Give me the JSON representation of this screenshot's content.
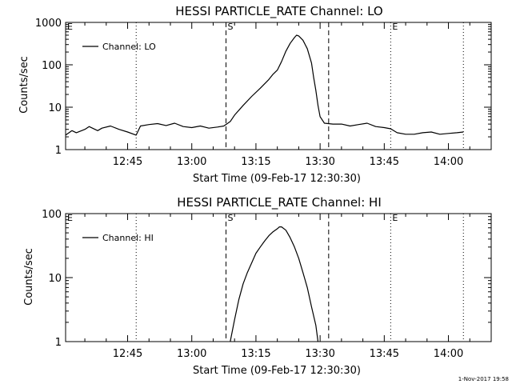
{
  "footer": {
    "timestamp": "1-Nov-2017 19:58"
  },
  "chart_data": [
    {
      "type": "line",
      "title": "HESSI PARTICLE_RATE Channel: LO",
      "xlabel": "Start Time (09-Feb-17 12:30:30)",
      "ylabel": "Counts/sec",
      "yscale": "log",
      "ylim": [
        1,
        1000
      ],
      "xlim": [
        "12:30:30",
        "14:10:00"
      ],
      "x_ticks": [
        "12:45",
        "13:00",
        "13:15",
        "13:30",
        "13:45",
        "14:00"
      ],
      "y_ticks": [
        "1",
        "10",
        "100",
        "1000"
      ],
      "legend": {
        "label": "Channel: LO",
        "position": "top-left"
      },
      "markers": [
        {
          "time": "12:30:30",
          "label": "E",
          "style": "dotted"
        },
        {
          "time": "12:47:00",
          "label": "",
          "style": "dotted"
        },
        {
          "time": "13:08:00",
          "label": "S",
          "style": "dashed"
        },
        {
          "time": "13:32:00",
          "label": "",
          "style": "dashed"
        },
        {
          "time": "13:46:30",
          "label": "E",
          "style": "dotted"
        },
        {
          "time": "14:03:30",
          "label": "",
          "style": "dotted"
        }
      ],
      "series": [
        {
          "name": "Channel: LO",
          "x": [
            "12:30:30",
            "12:32:00",
            "12:33:00",
            "12:35:00",
            "12:36:00",
            "12:38:00",
            "12:39:00",
            "12:41:00",
            "12:43:00",
            "12:45:00",
            "12:47:00",
            "12:48:00",
            "12:50:00",
            "12:52:00",
            "12:54:00",
            "12:56:00",
            "12:58:00",
            "13:00:00",
            "13:02:00",
            "13:04:00",
            "13:06:00",
            "13:07:30",
            "13:09:00",
            "13:10:00",
            "13:12:00",
            "13:14:00",
            "13:16:00",
            "13:18:00",
            "13:19:00",
            "13:20:00",
            "13:21:00",
            "13:22:00",
            "13:23:00",
            "13:24:00",
            "13:24:30",
            "13:25:00",
            "13:26:00",
            "13:27:00",
            "13:28:00",
            "13:28:30",
            "13:29:00",
            "13:29:30",
            "13:30:00",
            "13:31:00",
            "13:33:00",
            "13:35:00",
            "13:37:00",
            "13:39:00",
            "13:41:00",
            "13:43:00",
            "13:45:00",
            "13:46:30",
            "13:48:00",
            "13:50:00",
            "13:52:00",
            "13:54:00",
            "13:56:00",
            "13:58:00",
            "14:00:00",
            "14:02:00",
            "14:03:30"
          ],
          "y": [
            2.2,
            2.8,
            2.5,
            3.0,
            3.5,
            2.8,
            3.2,
            3.6,
            3.0,
            2.6,
            2.2,
            3.6,
            3.9,
            4.1,
            3.7,
            4.2,
            3.5,
            3.3,
            3.6,
            3.2,
            3.4,
            3.6,
            4.6,
            6.5,
            11,
            18,
            28,
            45,
            60,
            75,
            120,
            210,
            320,
            440,
            500,
            480,
            380,
            240,
            110,
            50,
            25,
            11,
            6.0,
            4.2,
            4.0,
            4.0,
            3.6,
            3.9,
            4.2,
            3.5,
            3.3,
            3.1,
            2.5,
            2.3,
            2.3,
            2.5,
            2.6,
            2.3,
            2.4,
            2.5,
            2.6
          ]
        }
      ]
    },
    {
      "type": "line",
      "title": "HESSI PARTICLE_RATE Channel: HI",
      "xlabel": "Start Time (09-Feb-17 12:30:30)",
      "ylabel": "Counts/sec",
      "yscale": "log",
      "ylim": [
        1,
        100
      ],
      "xlim": [
        "12:30:30",
        "14:10:00"
      ],
      "x_ticks": [
        "12:45",
        "13:00",
        "13:15",
        "13:30",
        "13:45",
        "14:00"
      ],
      "y_ticks": [
        "1",
        "10",
        "100"
      ],
      "legend": {
        "label": "Channel: HI",
        "position": "top-left"
      },
      "markers": [
        {
          "time": "12:30:30",
          "label": "E",
          "style": "dotted"
        },
        {
          "time": "12:47:00",
          "label": "",
          "style": "dotted"
        },
        {
          "time": "13:08:00",
          "label": "S",
          "style": "dashed"
        },
        {
          "time": "13:32:00",
          "label": "",
          "style": "dashed"
        },
        {
          "time": "13:46:30",
          "label": "E",
          "style": "dotted"
        },
        {
          "time": "14:03:30",
          "label": "",
          "style": "dotted"
        }
      ],
      "series": [
        {
          "name": "Channel: HI",
          "x": [
            "13:09:00",
            "13:10:00",
            "13:11:00",
            "13:12:00",
            "13:13:00",
            "13:14:00",
            "13:15:00",
            "13:16:00",
            "13:17:00",
            "13:18:00",
            "13:19:00",
            "13:20:00",
            "13:20:30",
            "13:21:00",
            "13:22:00",
            "13:23:00",
            "13:24:00",
            "13:25:00",
            "13:26:00",
            "13:27:00",
            "13:28:00",
            "13:29:00",
            "13:29:30"
          ],
          "y": [
            1.0,
            2.2,
            4.5,
            8.0,
            12,
            17,
            24,
            30,
            37,
            45,
            52,
            58,
            62,
            62,
            55,
            42,
            30,
            20,
            12,
            7,
            3.5,
            1.8,
            1.0
          ]
        }
      ]
    }
  ]
}
